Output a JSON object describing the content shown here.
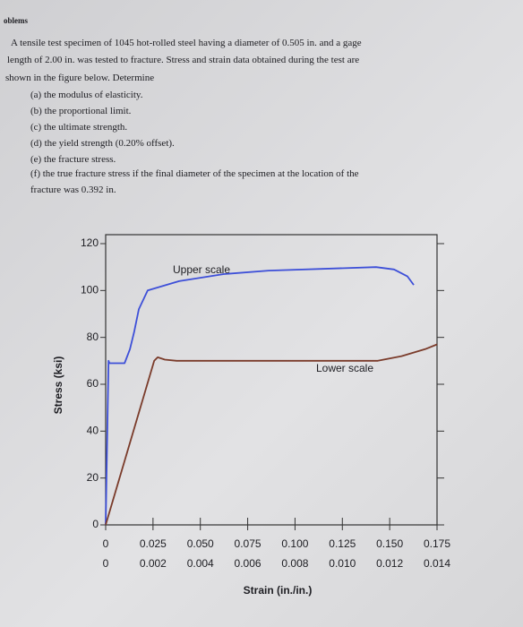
{
  "header": {
    "title": "oblems"
  },
  "problem": {
    "lines": [
      "A tensile test specimen of 1045 hot-rolled steel having a diameter of 0.505 in. and a gage",
      "length of 2.00 in. was tested to fracture. Stress and strain data obtained during the test are",
      "shown in the figure below. Determine"
    ],
    "items": [
      "(a) the modulus of elasticity.",
      "(b) the proportional limit.",
      "(c) the ultimate strength.",
      "(d) the yield strength (0.20% offset).",
      "(e) the fracture stress.",
      "(f) the true fracture stress if the final diameter of the specimen at the location of the",
      "fracture was 0.392 in."
    ]
  },
  "chart_data": {
    "type": "line",
    "xlabel": "Strain (in./in.)",
    "ylabel": "Stress (ksi)",
    "xlim": [
      0,
      0.175
    ],
    "x2lim": [
      0,
      0.014
    ],
    "ylim": [
      0,
      120
    ],
    "yticks": [
      0,
      20,
      40,
      60,
      80,
      100,
      120
    ],
    "xticks": [
      0,
      0.025,
      {
        "value": 0.05,
        "label": "0.050"
      },
      0.075,
      {
        "value": 0.1,
        "label": "0.100"
      },
      0.125,
      {
        "value": 0.15,
        "label": "0.150"
      },
      0.175
    ],
    "x2ticks": [
      0,
      0.002,
      0.004,
      0.006,
      0.008,
      {
        "value": 0.01,
        "label": "0.010"
      },
      0.012,
      0.014
    ],
    "series": [
      {
        "name": "Upper scale",
        "color": "#3d4fd8",
        "x": [
          0,
          0.0015,
          0.002,
          0.01,
          0.0128,
          0.0151,
          0.0175,
          0.0222,
          0.0388,
          0.0624,
          0.0861,
          0.1428,
          0.1523,
          0.1594,
          0.1627
        ],
        "values": [
          0,
          70,
          69,
          69,
          75,
          82.5,
          92,
          100,
          104,
          107,
          108.5,
          110,
          109,
          106,
          102.4
        ]
      },
      {
        "name": "Lower scale",
        "color": "#7a3b2a",
        "axis": "x2",
        "x": [
          0,
          0.00205,
          0.0022,
          0.0025,
          0.003,
          0.0115,
          0.0125,
          0.0135,
          0.014
        ],
        "values": [
          0,
          70,
          71.5,
          70.5,
          70,
          70,
          72,
          75,
          77
        ]
      }
    ]
  }
}
